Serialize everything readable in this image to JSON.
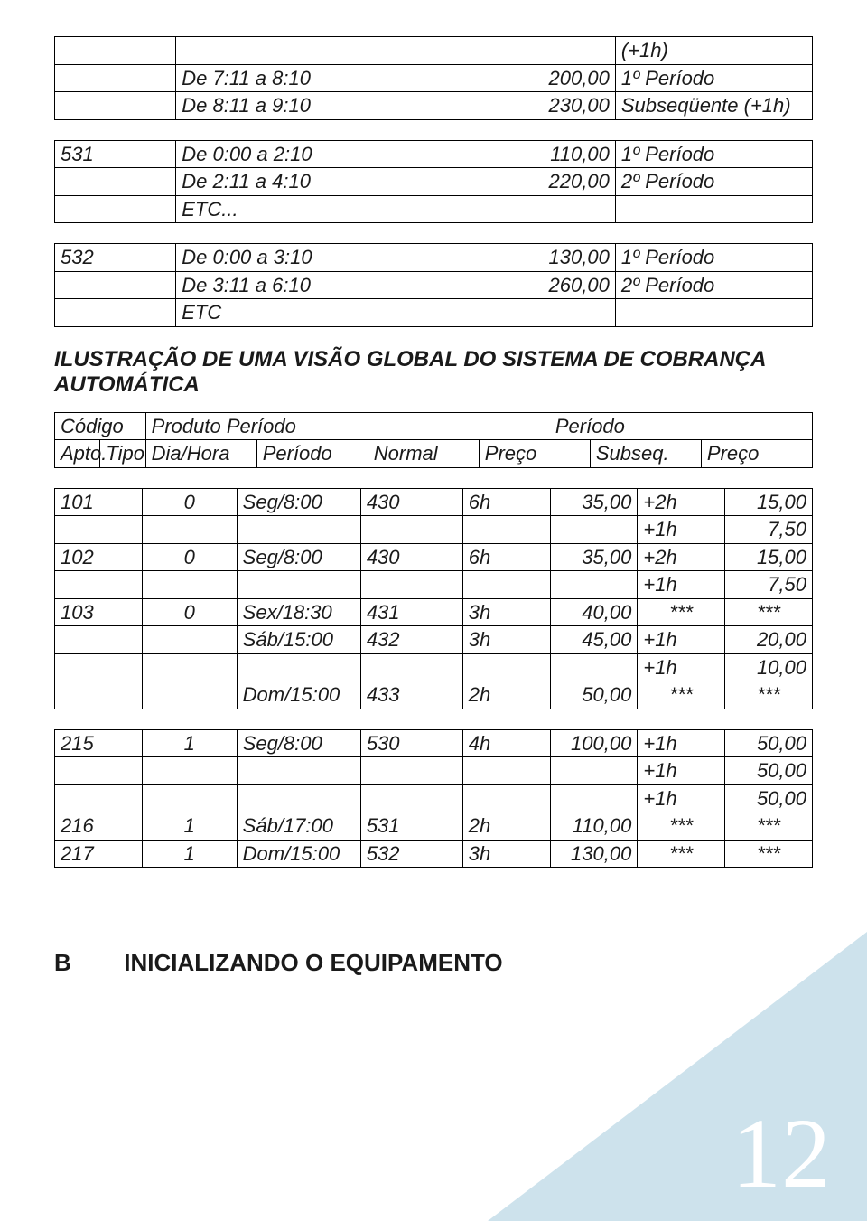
{
  "table1": {
    "rows": [
      [
        "",
        "",
        "",
        "(+1h)"
      ],
      [
        "",
        "De 7:11 a 8:10",
        "200,00",
        "1º Período"
      ],
      [
        "",
        "De 8:11 a 9:10",
        "230,00",
        "Subseqüente (+1h)"
      ]
    ]
  },
  "table2": {
    "rows": [
      [
        "531",
        "De 0:00 a 2:10",
        "110,00",
        "1º Período"
      ],
      [
        "",
        "De 2:11 a 4:10",
        "220,00",
        "2º Período"
      ],
      [
        "",
        "ETC...",
        "",
        ""
      ]
    ]
  },
  "table3": {
    "rows": [
      [
        "532",
        "De 0:00 a 3:10",
        "130,00",
        "1º Período"
      ],
      [
        "",
        "De 3:11 a 6:10",
        "260,00",
        "2º Período"
      ],
      [
        "",
        "ETC",
        "",
        ""
      ]
    ]
  },
  "heading_illustration": "ILUSTRAÇÃO DE UMA VISÃO GLOBAL DO SISTEMA DE COBRANÇA AUTOMÁTICA",
  "global_header": {
    "row1": [
      "Código",
      "Produto Período",
      "Período"
    ],
    "row2": [
      "Apto.",
      "Tipo",
      "Dia/Hora",
      "Período",
      "Normal",
      "Preço",
      "Subseq.",
      "Preço"
    ]
  },
  "global_data1": {
    "rows": [
      [
        "101",
        "0",
        "Seg/8:00",
        "430",
        "6h",
        "35,00",
        "+2h",
        "15,00"
      ],
      [
        "",
        "",
        "",
        "",
        "",
        "",
        "+1h",
        "7,50"
      ],
      [
        "102",
        "0",
        "Seg/8:00",
        "430",
        "6h",
        "35,00",
        "+2h",
        "15,00"
      ],
      [
        "",
        "",
        "",
        "",
        "",
        "",
        "+1h",
        "7,50"
      ],
      [
        "103",
        "0",
        "Sex/18:30",
        "431",
        "3h",
        "40,00",
        "***",
        "***"
      ],
      [
        "",
        "",
        "Sáb/15:00",
        "432",
        "3h",
        "45,00",
        "+1h",
        "20,00"
      ],
      [
        "",
        "",
        "",
        "",
        "",
        "",
        "+1h",
        "10,00"
      ],
      [
        "",
        "",
        "Dom/15:00",
        "433",
        "2h",
        "50,00",
        "***",
        "***"
      ]
    ]
  },
  "global_data2": {
    "rows": [
      [
        "215",
        "1",
        "Seg/8:00",
        "530",
        "4h",
        "100,00",
        "+1h",
        "50,00"
      ],
      [
        "",
        "",
        "",
        "",
        "",
        "",
        "+1h",
        "50,00"
      ],
      [
        "",
        "",
        "",
        "",
        "",
        "",
        "+1h",
        "50,00"
      ],
      [
        "216",
        "1",
        "Sáb/17:00",
        "531",
        "2h",
        "110,00",
        "***",
        "***"
      ],
      [
        "217",
        "1",
        "Dom/15:00",
        "532",
        "3h",
        "130,00",
        "***",
        "***"
      ]
    ]
  },
  "section_b_letter": "B",
  "section_b_title": "INICIALIZANDO O EQUIPAMENTO",
  "page_number": "12",
  "colors": {
    "triangle": "#cde2ec",
    "pagenum": "#ffffff",
    "border": "#000000",
    "text": "#1a1a1a"
  }
}
